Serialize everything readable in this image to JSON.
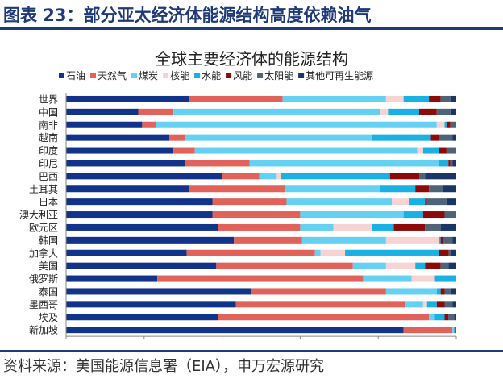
{
  "header": {
    "title": "图表 23：部分亚太经济体能源结构高度依赖油气"
  },
  "footer": {
    "source": "资料来源：美国能源信息署（EIA），申万宏源研究"
  },
  "chart_data": {
    "type": "bar",
    "orientation": "horizontal",
    "stacked": "percent",
    "title": "全球主要经济体的能源结构",
    "xlabel": "",
    "ylabel": "",
    "xlim": [
      0,
      100
    ],
    "xticks": [
      "0%",
      "20%",
      "40%",
      "60%",
      "80%",
      "100%"
    ],
    "grid": false,
    "legend_position": "top",
    "categories": [
      "世界",
      "中国",
      "南非",
      "越南",
      "印度",
      "印尼",
      "巴西",
      "土耳其",
      "日本",
      "澳大利亚",
      "欧元区",
      "韩国",
      "加拿大",
      "美国",
      "俄罗斯",
      "泰国",
      "墨西哥",
      "埃及",
      "新加坡"
    ],
    "series": [
      {
        "name": "石油",
        "color": "#12338a",
        "values": [
          31.5,
          18.5,
          19.5,
          26.5,
          27.5,
          30.5,
          40,
          31.5,
          37.5,
          37.5,
          39,
          43,
          32,
          38.5,
          23.5,
          47.5,
          43.5,
          39,
          86.5
        ]
      },
      {
        "name": "天然气",
        "color": "#e0625a",
        "values": [
          24,
          9,
          3.5,
          4,
          5.5,
          16.5,
          9.5,
          24.5,
          19,
          22.5,
          21,
          17.5,
          34,
          35,
          53,
          34.5,
          43.5,
          54,
          12.5
        ]
      },
      {
        "name": "煤炭",
        "color": "#64d0f2",
        "values": [
          26.5,
          53,
          72,
          48,
          57,
          48.5,
          4.5,
          24.5,
          27,
          26.5,
          8.5,
          21.5,
          1.5,
          8.5,
          12.5,
          13,
          4.5,
          1.5,
          0.5
        ]
      },
      {
        "name": "核能",
        "color": "#f6d4d3",
        "values": [
          4.5,
          2,
          2,
          0,
          1.5,
          0,
          1,
          0,
          4.5,
          0,
          10,
          13.5,
          6.5,
          7.5,
          6,
          0,
          1,
          0,
          0
        ]
      },
      {
        "name": "水能",
        "color": "#19b0e4",
        "values": [
          6.5,
          8,
          0.5,
          15,
          4,
          2.5,
          28,
          9,
          4,
          5,
          5.5,
          0.5,
          25,
          2.5,
          5.5,
          1,
          2.5,
          2.5,
          0
        ]
      },
      {
        "name": "风能",
        "color": "#8c0a0a",
        "values": [
          3,
          4.5,
          1,
          2,
          2,
          0.5,
          7.5,
          3.5,
          0.5,
          5.5,
          8,
          0.5,
          2.5,
          4,
          0,
          1,
          2,
          1,
          0
        ]
      },
      {
        "name": "太阳能",
        "color": "#4e6378",
        "values": [
          2.5,
          3.5,
          1.5,
          3.5,
          2.5,
          0.5,
          1.5,
          3.5,
          5,
          3,
          4,
          2.5,
          0.5,
          2,
          0,
          1.5,
          2,
          1.5,
          0.5
        ]
      },
      {
        "name": "其他可再生能源",
        "color": "#1b3566",
        "values": [
          1.5,
          1.5,
          0,
          1,
          0,
          1,
          8,
          3.5,
          2.5,
          0,
          4,
          1,
          1.5,
          2,
          0,
          1.5,
          1,
          0.5,
          0
        ]
      }
    ]
  }
}
